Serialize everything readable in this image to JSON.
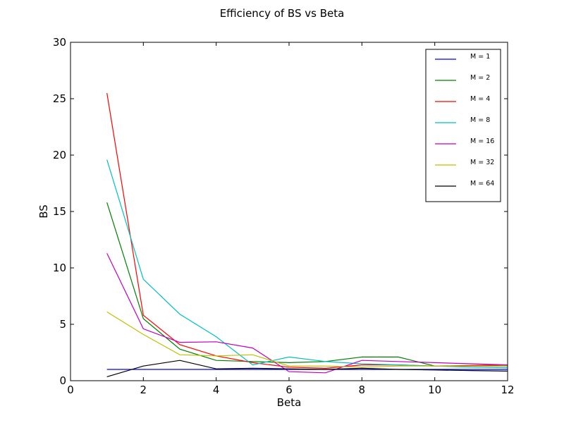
{
  "chart_data": {
    "type": "line",
    "title": "Efficiency of BS vs Beta",
    "xlabel": "Beta",
    "ylabel": "BS",
    "xlim": [
      0,
      12
    ],
    "ylim": [
      0,
      30
    ],
    "xticks": [
      "0",
      "2",
      "4",
      "6",
      "8",
      "10",
      "12"
    ],
    "yticks": [
      "0",
      "5",
      "10",
      "15",
      "20",
      "25",
      "30"
    ],
    "x": [
      1,
      2,
      3,
      4,
      5,
      6,
      7,
      8,
      9,
      10,
      11,
      12
    ],
    "grid": false,
    "legend_position": "top-right",
    "series": [
      {
        "name": "M = 1",
        "color": "#0000ff",
        "values": [
          1.0,
          1.0,
          1.0,
          1.0,
          1.0,
          1.0,
          1.0,
          1.0,
          1.0,
          1.0,
          1.0,
          1.0
        ]
      },
      {
        "name": "M = 2",
        "color": "#008000",
        "values": [
          15.8,
          5.5,
          2.8,
          1.8,
          1.7,
          1.6,
          1.7,
          2.1,
          2.1,
          1.3,
          1.3,
          1.3
        ]
      },
      {
        "name": "M = 4",
        "color": "#ff0000",
        "values": [
          25.5,
          5.8,
          3.2,
          2.2,
          1.6,
          1.2,
          1.1,
          1.4,
          1.4,
          1.3,
          1.35,
          1.4
        ]
      },
      {
        "name": "M = 8",
        "color": "#00bfbf",
        "values": [
          19.6,
          9.0,
          5.9,
          3.9,
          1.4,
          2.1,
          1.7,
          1.5,
          1.4,
          1.3,
          1.2,
          1.15
        ]
      },
      {
        "name": "M = 16",
        "color": "#bf00bf",
        "values": [
          11.3,
          4.6,
          3.4,
          3.45,
          2.9,
          0.8,
          0.7,
          1.8,
          1.7,
          1.6,
          1.5,
          1.4
        ]
      },
      {
        "name": "M = 32",
        "color": "#bfbf00",
        "values": [
          6.1,
          4.1,
          2.3,
          2.2,
          2.3,
          1.3,
          1.3,
          1.2,
          1.3,
          1.3,
          1.3,
          1.3
        ]
      },
      {
        "name": "M = 64",
        "color": "#000000",
        "values": [
          0.35,
          1.3,
          1.8,
          1.05,
          1.1,
          1.05,
          1.0,
          1.1,
          1.0,
          0.95,
          0.9,
          0.85
        ]
      }
    ]
  }
}
